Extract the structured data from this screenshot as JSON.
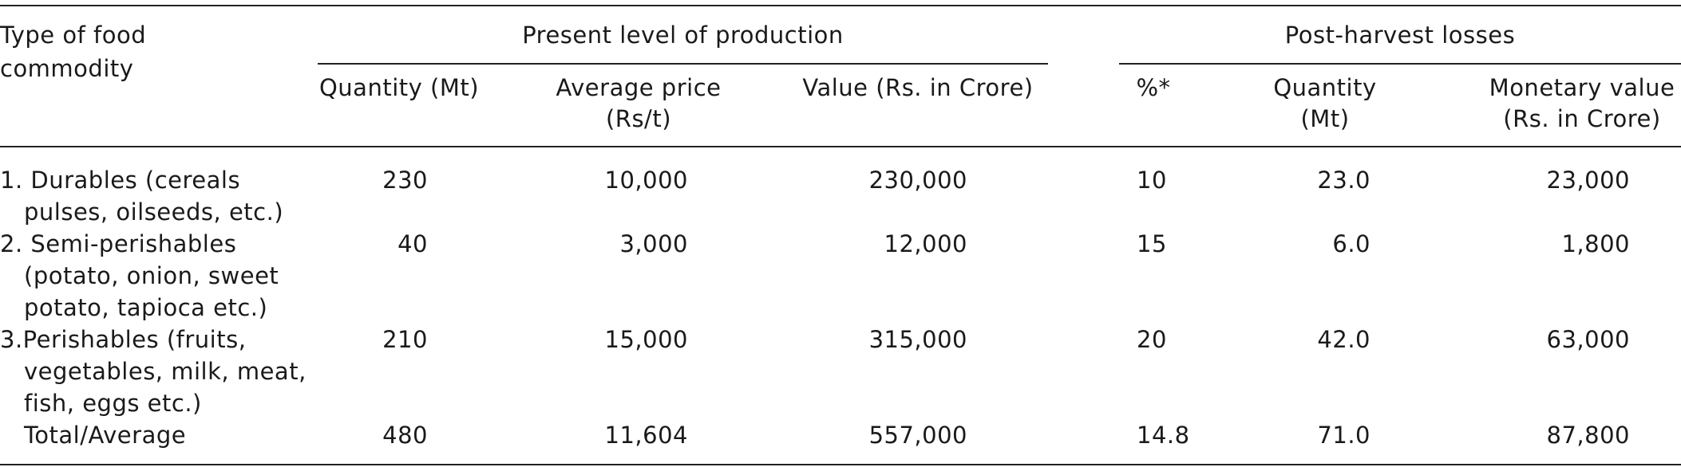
{
  "table": {
    "header": {
      "type_col": [
        "Type of food",
        "commodity"
      ],
      "group_present": "Present level of production",
      "group_losses": "Post-harvest losses",
      "quantity": "Quantity (Mt)",
      "avg_price": [
        "Average price",
        "(Rs/t)"
      ],
      "value": "Value (Rs. in Crore)",
      "percent": "%*",
      "loss_quantity": [
        "Quantity",
        "(Mt)"
      ],
      "monetary": [
        "Monetary value",
        "(Rs. in Crore)"
      ]
    },
    "rows": [
      {
        "type": [
          "1. Durables (cereals",
          "pulses, oilseeds, etc.)"
        ],
        "quantity": "230",
        "avg_price": "10,000",
        "value": "230,000",
        "percent": "10",
        "loss_quantity": "23.0",
        "monetary": "23,000"
      },
      {
        "type": [
          "2. Semi-perishables",
          "(potato, onion, sweet",
          "potato, tapioca etc.)"
        ],
        "quantity": "40",
        "avg_price": "3,000",
        "value": "12,000",
        "percent": "15",
        "loss_quantity": "6.0",
        "monetary": "1,800"
      },
      {
        "type": [
          "3.Perishables (fruits,",
          "vegetables, milk, meat,",
          "fish, eggs etc.)"
        ],
        "quantity": "210",
        "avg_price": "15,000",
        "value": "315,000",
        "percent": "20",
        "loss_quantity": "42.0",
        "monetary": "63,000"
      },
      {
        "type": [
          "Total/Average"
        ],
        "quantity": "480",
        "avg_price": "11,604",
        "value": "557,000",
        "percent": "14.8",
        "loss_quantity": "71.0",
        "monetary": "87,800"
      }
    ]
  }
}
